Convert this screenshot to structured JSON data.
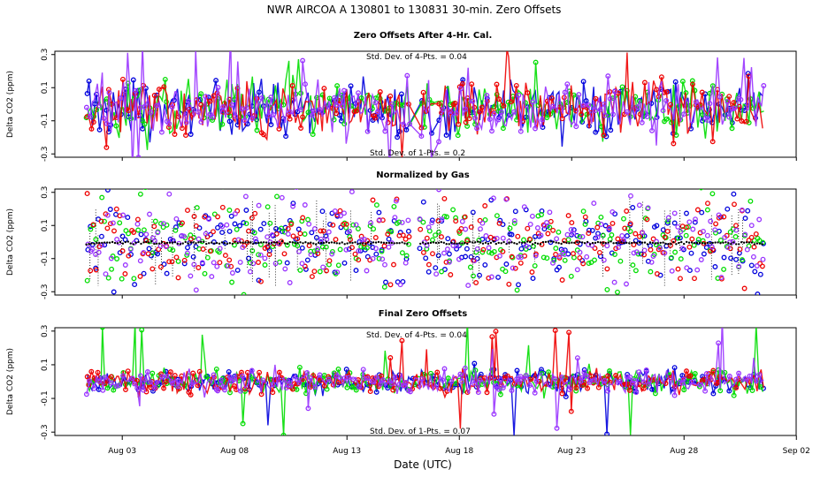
{
  "chart_data": {
    "type": "scatter",
    "title": "NWR   AIRCOA A   130801 to 130831   30-min. Zero Offsets",
    "xlabel": "Date (UTC)",
    "xlim": [
      0,
      32
    ],
    "x_ticks": [
      {
        "label": "Aug 03",
        "value": 3
      },
      {
        "label": "Aug 08",
        "value": 8
      },
      {
        "label": "Aug 13",
        "value": 13
      },
      {
        "label": "Aug 18",
        "value": 18
      },
      {
        "label": "Aug 23",
        "value": 23
      },
      {
        "label": "Aug 28",
        "value": 28
      },
      {
        "label": "Sep 02",
        "value": 33
      }
    ],
    "series_colors": {
      "gas1": "#0000dd",
      "gas2": "#00dd00",
      "gas3": "#ee0000",
      "gas4": "#9933ff",
      "reference": "#000000"
    },
    "panels": [
      {
        "title": "Zero Offsets After 4-Hr. Cal.",
        "ylabel": "Delta CO2 (ppm)",
        "ylim": [
          -0.32,
          0.32
        ],
        "yticks": [
          "0.3",
          "0.1",
          "-0.1",
          "-0.3"
        ],
        "ytick_values": [
          0.3,
          0.1,
          -0.1,
          -0.3
        ],
        "annotation_top": "Std. Dev. of 4-Pts. =  0.04",
        "annotation_bottom": "Std. Dev. of 1-Pts. =  0.2",
        "mode": "lines",
        "points": {
          "x_start": 1.4,
          "x_end": 31.6,
          "count": 280,
          "spread": 0.08,
          "center": -0.02,
          "gaps": [
            [
              15.8,
              16.3
            ],
            [
              16.8,
              17.0
            ]
          ]
        }
      },
      {
        "title": "Normalized by Gas",
        "ylabel": "Delta CO2 (ppm)",
        "ylim": [
          -0.32,
          0.32
        ],
        "yticks": [
          "0.3",
          "0.1",
          "-0.1",
          "-0.3"
        ],
        "ytick_values": [
          0.3,
          0.1,
          -0.1,
          -0.3
        ],
        "annotation_top": "",
        "annotation_bottom": "",
        "mode": "points",
        "points": {
          "x_start": 1.4,
          "x_end": 31.6,
          "count": 230,
          "spread": 0.12,
          "center": 0.0,
          "gaps": [
            [
              15.8,
              16.2
            ]
          ]
        }
      },
      {
        "title": "Final Zero Offsets",
        "ylabel": "Delta CO2 (ppm)",
        "ylim": [
          -0.32,
          0.32
        ],
        "yticks": [
          "0.3",
          "0.1",
          "-0.1",
          "-0.3"
        ],
        "ytick_values": [
          0.3,
          0.1,
          -0.1,
          -0.3
        ],
        "annotation_top": "Std. Dev. of 4-Pts. =  0.04",
        "annotation_bottom": "Std. Dev. of 1-Pts. =  0.07",
        "mode": "lines",
        "points": {
          "x_start": 1.4,
          "x_end": 31.6,
          "count": 300,
          "spread": 0.035,
          "center": 0.0,
          "gaps": []
        }
      }
    ]
  }
}
